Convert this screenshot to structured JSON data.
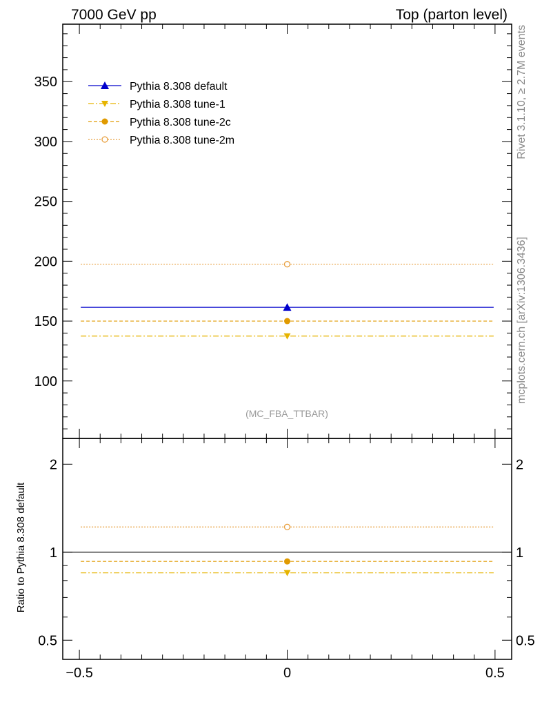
{
  "header": {
    "left": "7000 GeV pp",
    "right": "Top (parton level)"
  },
  "side_text": {
    "top": "Rivet 3.1.10, ≥ 2.7M events",
    "bottom": "mcplots.cern.ch [arXiv:1306.3436]"
  },
  "watermark": "(MC_FBA_TTBAR)",
  "chart_data": [
    {
      "type": "line",
      "panel": "main",
      "x_range": [
        -0.5,
        0.5
      ],
      "xlim": [
        -0.54,
        0.54
      ],
      "ylim": [
        52,
        398
      ],
      "y_ticks": [
        100,
        150,
        200,
        250,
        300,
        350
      ],
      "y_tick_labels": [
        "100",
        "150",
        "200",
        "250",
        "300",
        "350"
      ],
      "x": [
        0
      ],
      "series": [
        {
          "name": "Pythia 8.308 default",
          "values": [
            161.5
          ],
          "color": "#0000cc",
          "dash": "",
          "marker": "triangle-up"
        },
        {
          "name": "Pythia 8.308 tune-1",
          "values": [
            137.5
          ],
          "color": "#e6b400",
          "dash": "8 3 2 3",
          "marker": "triangle-down"
        },
        {
          "name": "Pythia 8.308 tune-2c",
          "values": [
            150
          ],
          "color": "#e09a00",
          "dash": "5 3",
          "marker": "circle"
        },
        {
          "name": "Pythia 8.308 tune-2m",
          "values": [
            197.5
          ],
          "color": "#e8a040",
          "dash": "2 2",
          "marker": "circle-open"
        }
      ],
      "legend_position": "top-left"
    },
    {
      "type": "line",
      "panel": "ratio",
      "ylabel": "Ratio to Pythia 8.308 default",
      "log_y": true,
      "xlim": [
        -0.54,
        0.54
      ],
      "ylim": [
        0.43,
        2.45
      ],
      "y_ticks": [
        0.5,
        1,
        2
      ],
      "y_tick_labels": [
        "0.5",
        "1",
        "2"
      ],
      "x_ticks": [
        -0.5,
        0,
        0.5
      ],
      "x_tick_labels": [
        "−0.5",
        "0",
        "0.5"
      ],
      "x": [
        0
      ],
      "series": [
        {
          "name": "Pythia 8.308 default",
          "values": [
            1.0
          ],
          "color": "#000000",
          "dash": "",
          "marker": "none"
        },
        {
          "name": "Pythia 8.308 tune-1",
          "values": [
            0.85
          ],
          "color": "#e6b400",
          "dash": "8 3 2 3",
          "marker": "triangle-down"
        },
        {
          "name": "Pythia 8.308 tune-2c",
          "values": [
            0.93
          ],
          "color": "#e09a00",
          "dash": "5 3",
          "marker": "circle"
        },
        {
          "name": "Pythia 8.308 tune-2m",
          "values": [
            1.22
          ],
          "color": "#e8a040",
          "dash": "2 2",
          "marker": "circle-open"
        }
      ]
    }
  ]
}
